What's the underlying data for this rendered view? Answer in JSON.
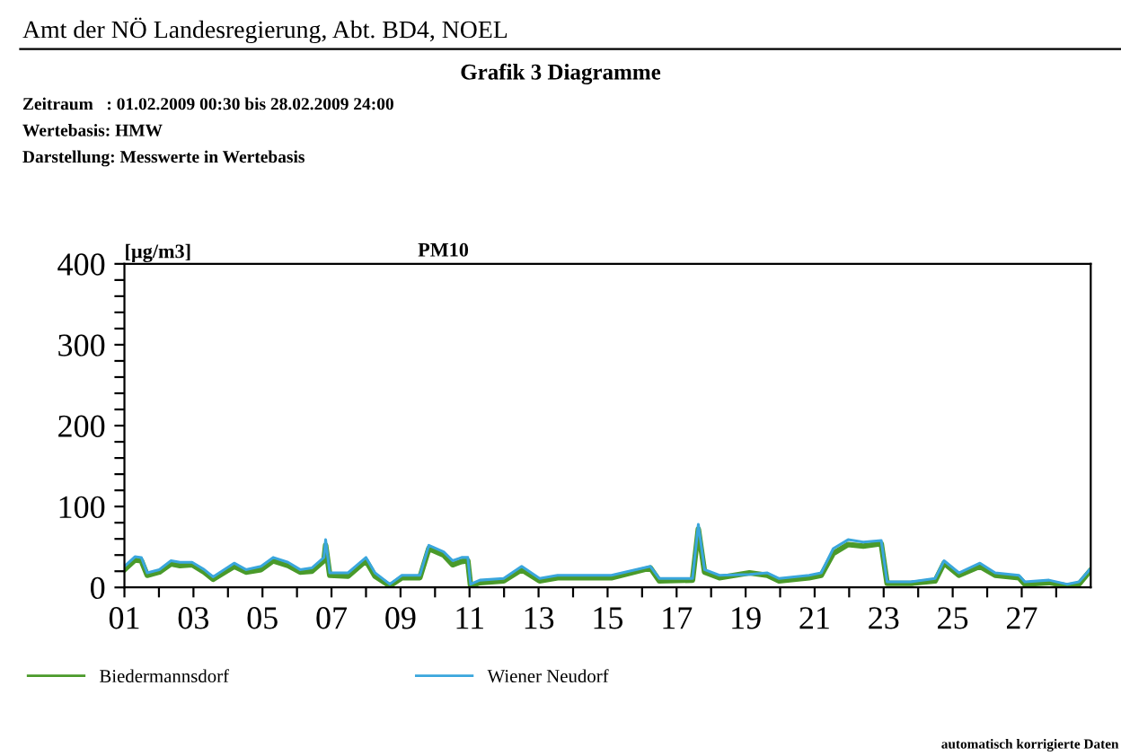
{
  "chart_data": {
    "type": "line",
    "title": "Grafik 3 Diagramme",
    "subtitle": "PM10",
    "ylabel": "[µg/m3]",
    "annotations": [
      "Amt der NÖ Landesregierung, Abt. BD4, NOEL",
      "Zeitraum   : 01.02.2009 00:30 bis 28.02.2009 24:00",
      "Wertebasis: HMW",
      "Darstellung: Messwerte in Wertebasis",
      "automatisch korrigierte Daten"
    ],
    "xlim": [
      1,
      29
    ],
    "ylim": [
      0,
      400
    ],
    "xticks": [
      {
        "value": 1,
        "label": "01"
      },
      {
        "value": 2,
        "label": null
      },
      {
        "value": 3,
        "label": "03"
      },
      {
        "value": 4,
        "label": null
      },
      {
        "value": 5,
        "label": "05"
      },
      {
        "value": 6,
        "label": null
      },
      {
        "value": 7,
        "label": "07"
      },
      {
        "value": 8,
        "label": null
      },
      {
        "value": 9,
        "label": "09"
      },
      {
        "value": 10,
        "label": null
      },
      {
        "value": 11,
        "label": "11"
      },
      {
        "value": 12,
        "label": null
      },
      {
        "value": 13,
        "label": "13"
      },
      {
        "value": 14,
        "label": null
      },
      {
        "value": 15,
        "label": "15"
      },
      {
        "value": 16,
        "label": null
      },
      {
        "value": 17,
        "label": "17"
      },
      {
        "value": 18,
        "label": null
      },
      {
        "value": 19,
        "label": "19"
      },
      {
        "value": 20,
        "label": null
      },
      {
        "value": 21,
        "label": "21"
      },
      {
        "value": 22,
        "label": null
      },
      {
        "value": 23,
        "label": "23"
      },
      {
        "value": 24,
        "label": null
      },
      {
        "value": 25,
        "label": "25"
      },
      {
        "value": 26,
        "label": null
      },
      {
        "value": 27,
        "label": "27"
      },
      {
        "value": 28,
        "label": null
      }
    ],
    "yticks": [
      0,
      {
        "value": 20,
        "label": null
      },
      {
        "value": 40,
        "label": null
      },
      {
        "value": 60,
        "label": null
      },
      {
        "value": 80,
        "label": null
      },
      100,
      {
        "value": 120,
        "label": null
      },
      {
        "value": 140,
        "label": null
      },
      {
        "value": 160,
        "label": null
      },
      {
        "value": 180,
        "label": null
      },
      200,
      {
        "value": 220,
        "label": null
      },
      {
        "value": 240,
        "label": null
      },
      {
        "value": 260,
        "label": null
      },
      {
        "value": 280,
        "label": null
      },
      300,
      {
        "value": 320,
        "label": null
      },
      {
        "value": 340,
        "label": null
      },
      {
        "value": 360,
        "label": null
      },
      {
        "value": 380,
        "label": null
      },
      400
    ],
    "x": [
      1.0,
      1.31,
      1.49,
      1.66,
      2.01,
      2.35,
      2.61,
      2.96,
      3.31,
      3.57,
      4.18,
      4.52,
      4.96,
      5.31,
      5.74,
      6.09,
      6.43,
      6.78,
      6.83,
      6.95,
      7.48,
      8.0,
      8.26,
      8.69,
      9.04,
      9.56,
      9.82,
      10.25,
      10.51,
      10.77,
      10.95,
      11.03,
      11.3,
      11.99,
      12.51,
      13.03,
      13.55,
      14.07,
      15.11,
      16.24,
      16.5,
      17.46,
      17.63,
      17.81,
      18.24,
      19.11,
      19.63,
      19.97,
      20.84,
      21.19,
      21.54,
      21.97,
      22.41,
      22.93,
      23.1,
      23.79,
      24.49,
      24.75,
      25.18,
      25.79,
      26.23,
      26.92,
      27.09,
      27.79,
      28.31,
      28.66,
      28.97
    ],
    "series": [
      {
        "name": "Biedermannsdorf",
        "color": "#4a9a2a",
        "values": [
          22,
          34,
          33,
          15,
          19,
          29,
          27,
          28,
          19,
          10,
          26,
          19,
          22,
          33,
          27,
          19,
          20,
          33,
          52,
          15,
          14,
          33,
          14,
          2,
          12,
          12,
          48,
          40,
          28,
          32,
          33,
          2,
          6,
          8,
          22,
          8,
          12,
          12,
          12,
          24,
          8,
          9,
          72,
          19,
          12,
          18,
          15,
          8,
          12,
          15,
          42,
          53,
          51,
          54,
          5,
          5,
          8,
          30,
          15,
          26,
          15,
          12,
          4,
          6,
          2,
          4,
          20
        ]
      },
      {
        "name": "Wiener Neudorf",
        "color": "#3aa6dd",
        "values": [
          26,
          38,
          37,
          18,
          22,
          33,
          31,
          31,
          22,
          13,
          30,
          22,
          26,
          37,
          31,
          22,
          24,
          37,
          59,
          18,
          18,
          37,
          18,
          4,
          15,
          15,
          52,
          44,
          33,
          37,
          37,
          4,
          9,
          11,
          26,
          11,
          15,
          15,
          15,
          26,
          11,
          11,
          78,
          22,
          15,
          16,
          18,
          11,
          15,
          18,
          48,
          59,
          56,
          58,
          7,
          7,
          11,
          33,
          18,
          30,
          18,
          15,
          7,
          9,
          4,
          7,
          22
        ]
      }
    ],
    "legend": "bottom",
    "grid": false
  }
}
